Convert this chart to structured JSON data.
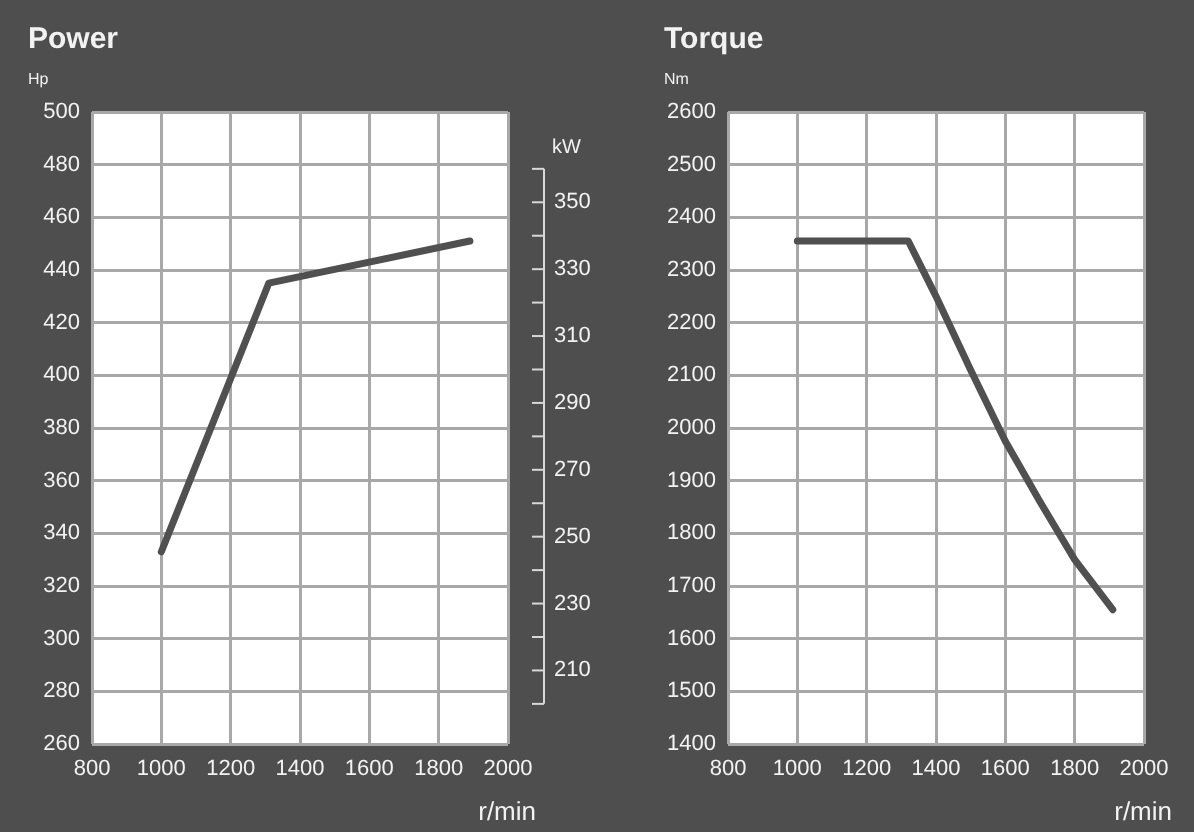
{
  "chart_data": [
    {
      "type": "line",
      "title": "Power",
      "ylabel": "Hp",
      "y2label": "kW",
      "xlabel": "r/min",
      "grid": true,
      "marker": "none",
      "line_style": "solid",
      "xlim": [
        800,
        2000
      ],
      "xticks": [
        800,
        1000,
        1200,
        1400,
        1600,
        1800,
        2000
      ],
      "ylim": [
        260,
        500
      ],
      "yticks": [
        260,
        280,
        300,
        320,
        340,
        360,
        380,
        400,
        420,
        440,
        460,
        480,
        500
      ],
      "y2lim": [
        188,
        377
      ],
      "y2ticks": [
        {
          "value": 200,
          "label": null
        },
        210,
        {
          "value": 220,
          "label": null
        },
        230,
        {
          "value": 240,
          "label": null
        },
        250,
        {
          "value": 260,
          "label": null
        },
        270,
        {
          "value": 280,
          "label": null
        },
        290,
        {
          "value": 300,
          "label": null
        },
        310,
        {
          "value": 320,
          "label": null
        },
        330,
        {
          "value": 340,
          "label": null
        },
        350,
        {
          "value": 360,
          "label": null
        }
      ],
      "series": [
        {
          "color": "#505050",
          "x": [
            1000,
            1310,
            1890
          ],
          "values": [
            333,
            435,
            451
          ]
        }
      ]
    },
    {
      "type": "line",
      "title": "Torque",
      "ylabel": "Nm",
      "xlabel": "r/min",
      "grid": true,
      "marker": "none",
      "line_style": "solid",
      "xlim": [
        800,
        2000
      ],
      "xticks": [
        800,
        1000,
        1200,
        1400,
        1600,
        1800,
        2000
      ],
      "ylim": [
        1400,
        2600
      ],
      "yticks": [
        1400,
        1500,
        1600,
        1700,
        1800,
        1900,
        2000,
        2100,
        2200,
        2300,
        2400,
        2500,
        2600
      ],
      "series": [
        {
          "color": "#505050",
          "x": [
            1000,
            1320,
            1400,
            1500,
            1600,
            1700,
            1800,
            1910
          ],
          "values": [
            2355,
            2355,
            2250,
            2110,
            1975,
            1860,
            1750,
            1655
          ]
        }
      ]
    }
  ]
}
